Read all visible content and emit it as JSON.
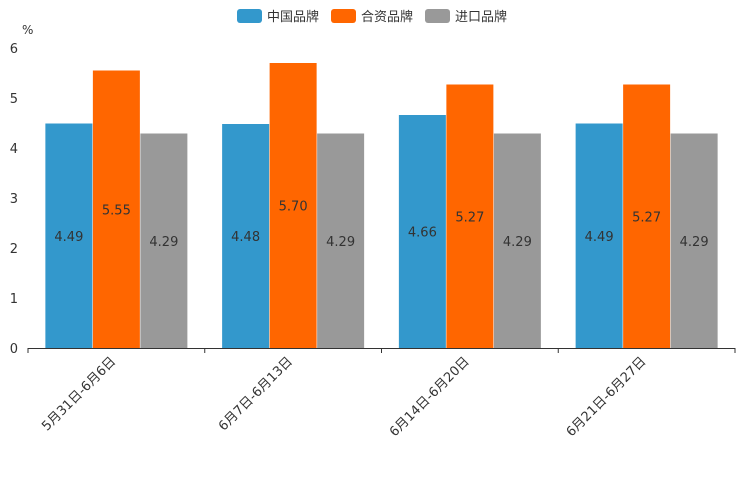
{
  "chart_data": {
    "type": "bar",
    "title": "",
    "xlabel": "",
    "ylabel": "%",
    "ylim": [
      0,
      6
    ],
    "yticks": [
      0,
      1,
      2,
      3,
      4,
      5,
      6
    ],
    "categories": [
      "5月31日-6月6日",
      "6月7日-6月13日",
      "6月14日-6月20日",
      "6月21日-6月27日"
    ],
    "series": [
      {
        "name": "中国品牌",
        "color": "#3398cc",
        "values": [
          4.49,
          4.48,
          4.66,
          4.49
        ]
      },
      {
        "name": "合资品牌",
        "color": "#ff6600",
        "values": [
          5.55,
          5.7,
          5.27,
          5.27
        ]
      },
      {
        "name": "进口品牌",
        "color": "#999999",
        "values": [
          4.29,
          4.29,
          4.29,
          4.29
        ]
      }
    ],
    "value_labels": [
      [
        "4.49",
        "4.48",
        "4.66",
        "4.49"
      ],
      [
        "5.55",
        "5.70",
        "5.27",
        "5.27"
      ],
      [
        "4.29",
        "4.29",
        "4.29",
        "4.29"
      ]
    ],
    "legend_position": "top-center"
  }
}
